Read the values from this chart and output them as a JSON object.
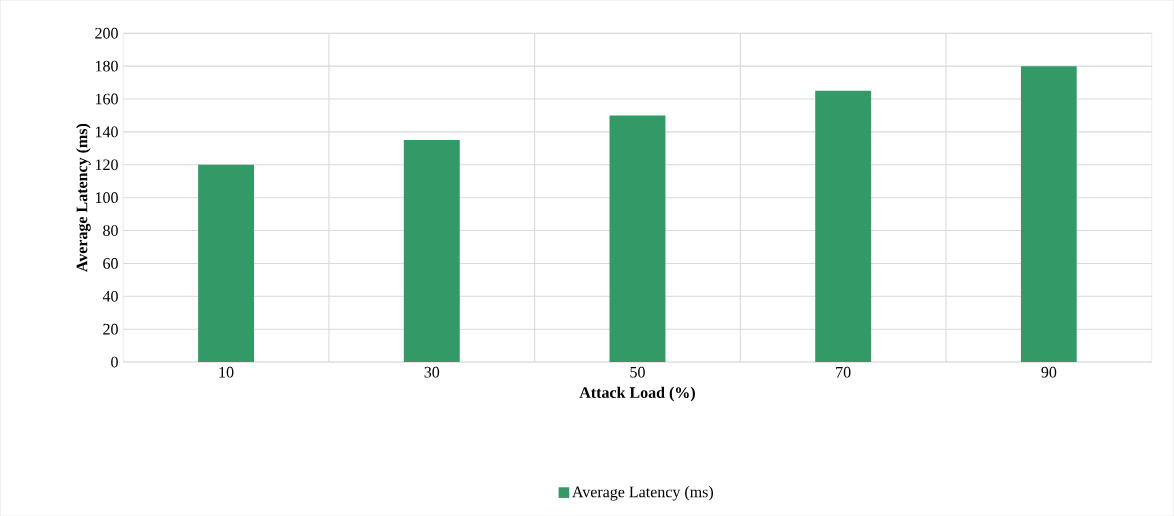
{
  "chart_data": {
    "type": "bar",
    "xlabel": "Attack Load (%)",
    "ylabel": "Average Latency (ms)",
    "categories": [
      "10",
      "30",
      "50",
      "70",
      "90"
    ],
    "series": [
      {
        "name": "Average Latency (ms)",
        "color": "#339966",
        "values": [
          120,
          135,
          150,
          165,
          180
        ]
      }
    ],
    "ylim": [
      0,
      200
    ],
    "yticks": [
      0,
      20,
      40,
      60,
      80,
      100,
      120,
      140,
      160,
      180,
      200
    ],
    "grid": true,
    "legend": "bottom"
  }
}
